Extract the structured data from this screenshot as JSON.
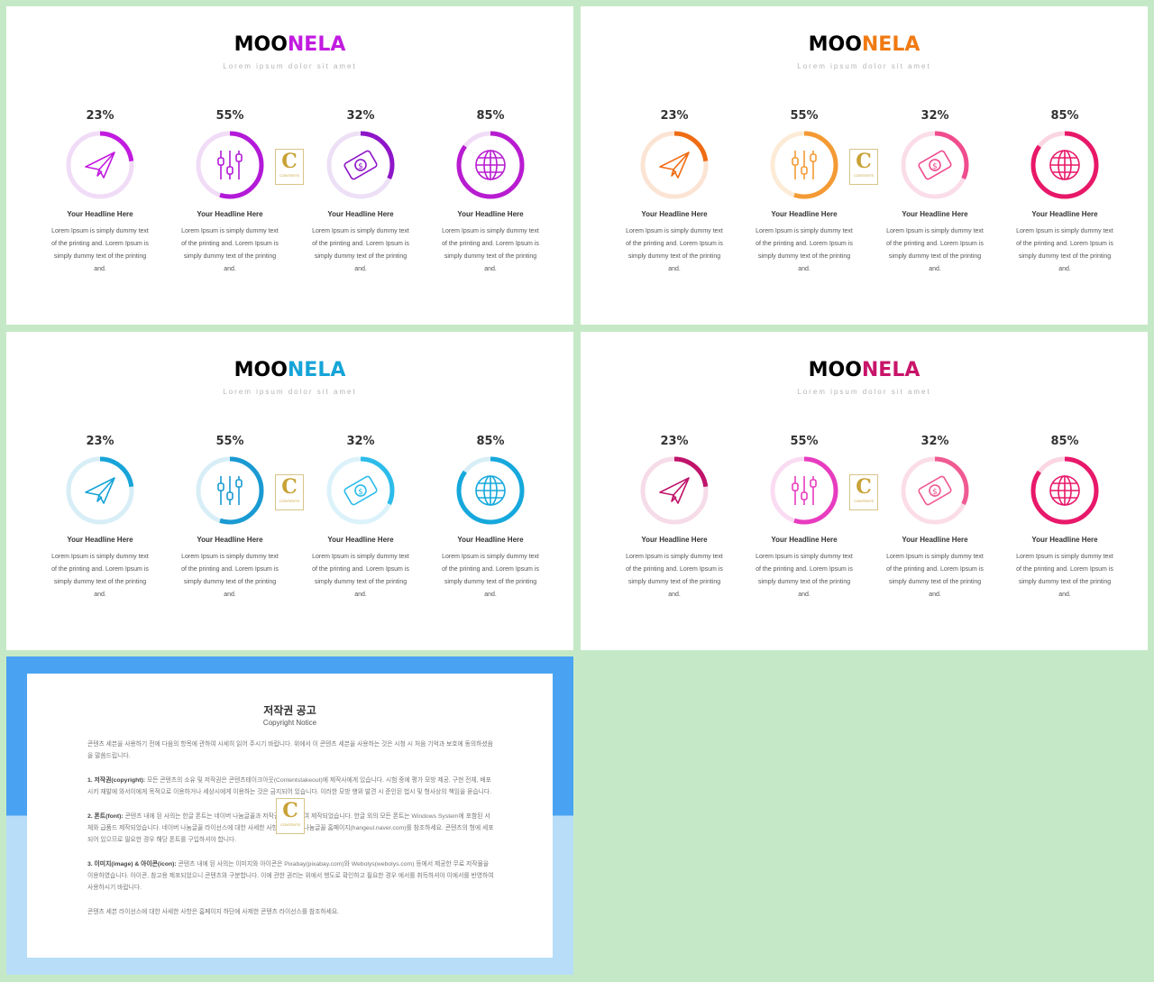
{
  "slides": [
    {
      "title_a": "MOO",
      "title_b": "NELA",
      "subtitle": "Lorem ipsum dolor sit amet",
      "accent": "#c21be0",
      "colors": [
        "#c21be0",
        "#b31ad8",
        "#8e16c8",
        "#b81cd0"
      ],
      "tracks": [
        "#f1dcf7",
        "#f1dcf7",
        "#ede0f6",
        "#f1dcf7"
      ]
    },
    {
      "title_a": "MOO",
      "title_b": "NELA",
      "subtitle": "Lorem ipsum dolor sit amet",
      "accent": "#f07a12",
      "colors": [
        "#f06c14",
        "#f49a34",
        "#f04c8e",
        "#e81868"
      ],
      "tracks": [
        "#fbe4d4",
        "#fcebd6",
        "#fadde9",
        "#fad6e3"
      ]
    },
    {
      "title_a": "MOO",
      "title_b": "NELA",
      "subtitle": "Lorem ipsum dolor sit amet",
      "accent": "#16a4d8",
      "colors": [
        "#18a4d8",
        "#1a9ad2",
        "#2cbcea",
        "#16a8dc"
      ],
      "tracks": [
        "#d8eef7",
        "#d8eef7",
        "#dcf2fa",
        "#d8eef7"
      ]
    },
    {
      "title_a": "MOO",
      "title_b": "NELA",
      "subtitle": "Lorem ipsum dolor sit amet",
      "accent": "#c8146a",
      "colors": [
        "#c0146a",
        "#e83cc0",
        "#f05a92",
        "#e8186a"
      ],
      "tracks": [
        "#f6dbe8",
        "#fadcf2",
        "#fbdde8",
        "#fad6e3"
      ]
    }
  ],
  "items": [
    {
      "pct": "23%",
      "value": 0.23,
      "icon": "paper-plane-icon",
      "headline": "Your Headline Here",
      "lines": [
        "Lorem Ipsum is simply dummy text",
        "of the printing and. Lorem Ipsum is",
        "simply dummy text of the printing",
        "and."
      ]
    },
    {
      "pct": "55%",
      "value": 0.55,
      "icon": "sliders-icon",
      "headline": "Your Headline Here",
      "lines": [
        "Lorem Ipsum is simply dummy text",
        "of the printing and. Lorem Ipsum is",
        "simply dummy text of the printing",
        "and."
      ]
    },
    {
      "pct": "32%",
      "value": 0.32,
      "icon": "money-icon",
      "headline": "Your Headline Here",
      "lines": [
        "Lorem Ipsum is simply dummy text",
        "of the printing and. Lorem Ipsum is",
        "simply dummy text of the printing",
        "and."
      ]
    },
    {
      "pct": "85%",
      "value": 0.85,
      "icon": "globe-icon",
      "headline": "Your Headline Here",
      "lines": [
        "Lorem Ipsum is simply dummy text",
        "of the printing and. Lorem Ipsum is",
        "simply dummy text of the printing",
        "and."
      ]
    }
  ],
  "logo": {
    "letter": "C",
    "label": "CONTENTS"
  },
  "notice": {
    "title": "저작권 공고",
    "subtitle": "Copyright Notice",
    "bg_top": "#4aa3f2",
    "bg_bottom": "#b7ddf8",
    "paragraphs": [
      {
        "lead": "",
        "text": "콘텐츠 세븐을 사용하기 전에 다음의 항목에 관하여 시세히 읽어 주시기 바랍니다. 위에서 이 콘텐츠 세븐을 사용하는 것은 시청 시 처음 기억과 보호에 동의하셨음을 말씀드립니다."
      },
      {
        "lead": "1. 저작권(copyright): ",
        "text": "모든 콘텐츠의 소유 및 저작권은 콘텐츠테이크아웃(Contentstakeout)에 제작사에게 있습니다. 시험 중에 평가 모방 제공, 구현 전체, 배포 시키 재발에 와서이에게 목적으로 이용하거나 세상시에게 이용하는 것은 금지되어 있습니다. 이러한 모방 행위 발견 시 준인된 법시 및 형사상의 책임을 묻습니다."
      },
      {
        "lead": "2. 폰트(font): ",
        "text": "콘텐츠 내에 된 사의는 한글 폰트는 네이버 나눔글꼴과 저작권을 마주하여 제작되었습니다. 한글 외의 모든 폰트는 Windows System에 포함된 서체와 급품드 제작되었습니다. 네이버 나눔글꼴 라이선스에 대한 사세한 사항은 네이버 나눔글꼴 홈페이지(hangeul.naver.com)를 참조하세요. 콘텐츠의 형에 세포되어 있으므로 필요한 경우 해당 폰트를 구입하셔야 합니다."
      },
      {
        "lead": "3. 이미지(image) & 아이콘(icon): ",
        "text": "콘텐츠 내에 된 사의는 이미지와 아이콘은 Pixabay(pixabay.com)와 Webolys(webolys.com) 등에서 제공한 무료 저작물을 이용하였습니다. 아이콘, 참고용 제포되었으니 콘텐츠와 구분합니다. 이에 관한 권리는 위에서 행도로 확인하고 필요한 경우 에서를 취득하셔야 이에서를 반영하여 사용하시기 바랍니다."
      },
      {
        "lead": "",
        "text": "콘텐츠 세븐 라이선스에 대한 사세한 사항은 홈페이지 하단에 사제한 콘텐츠 라이선스를 참조하세요."
      }
    ]
  }
}
